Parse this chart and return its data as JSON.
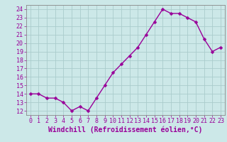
{
  "x": [
    0,
    1,
    2,
    3,
    4,
    5,
    6,
    7,
    8,
    9,
    10,
    11,
    12,
    13,
    14,
    15,
    16,
    17,
    18,
    19,
    20,
    21,
    22,
    23
  ],
  "y": [
    14.0,
    14.0,
    13.5,
    13.5,
    13.0,
    12.0,
    12.5,
    12.0,
    13.5,
    15.0,
    16.5,
    17.5,
    18.5,
    19.5,
    21.0,
    22.5,
    24.0,
    23.5,
    23.5,
    23.0,
    22.5,
    20.5,
    19.0,
    19.5
  ],
  "line_color": "#990099",
  "marker": "D",
  "marker_size": 2.5,
  "line_width": 1.0,
  "bg_color": "#cce8e8",
  "grid_color": "#aacccc",
  "xlabel": "Windchill (Refroidissement éolien,°C)",
  "xlabel_color": "#990099",
  "xlabel_fontsize": 7,
  "ytick_labels": [
    "12",
    "13",
    "14",
    "15",
    "16",
    "17",
    "18",
    "19",
    "20",
    "21",
    "22",
    "23",
    "24"
  ],
  "ytick_values": [
    12,
    13,
    14,
    15,
    16,
    17,
    18,
    19,
    20,
    21,
    22,
    23,
    24
  ],
  "xtick_labels": [
    "0",
    "1",
    "2",
    "3",
    "4",
    "5",
    "6",
    "7",
    "8",
    "9",
    "10",
    "11",
    "12",
    "13",
    "14",
    "15",
    "16",
    "17",
    "18",
    "19",
    "20",
    "21",
    "22",
    "23"
  ],
  "ylim": [
    11.5,
    24.5
  ],
  "xlim": [
    -0.5,
    23.5
  ],
  "tick_color": "#990099",
  "tick_fontsize": 6,
  "axis_color": "#888888",
  "spine_color": "#888888"
}
